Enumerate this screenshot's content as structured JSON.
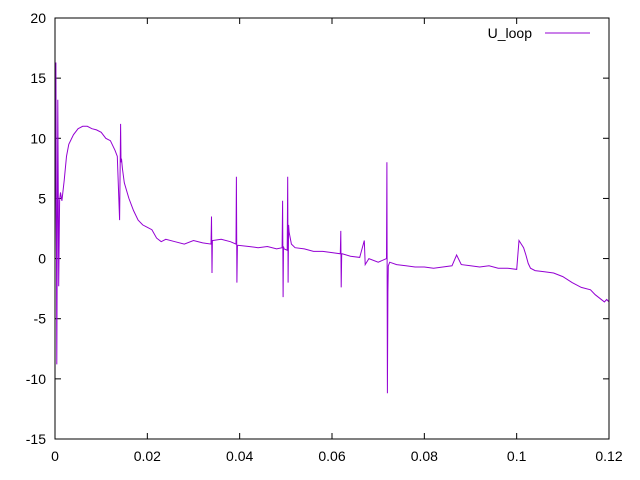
{
  "chart_data": {
    "type": "line",
    "title": "",
    "xlabel": "",
    "ylabel": "",
    "xlim": [
      0,
      0.12
    ],
    "ylim": [
      -15,
      20
    ],
    "x_ticks": [
      0,
      0.02,
      0.04,
      0.06,
      0.08,
      0.1,
      0.12
    ],
    "x_tick_labels": [
      "0",
      "0.02",
      "0.04",
      "0.06",
      "0.08",
      "0.1",
      "0.12"
    ],
    "y_ticks": [
      -15,
      -10,
      -5,
      0,
      5,
      10,
      15,
      20
    ],
    "y_tick_labels": [
      "-15",
      "-10",
      "-5",
      "0",
      "5",
      "10",
      "15",
      "20"
    ],
    "grid": false,
    "legend_position": "top-right",
    "series": [
      {
        "name": "U_loop",
        "color": "#9400d3",
        "x": [
          0,
          0.0002,
          0.0004,
          0.0006,
          0.0008,
          0.001,
          0.0012,
          0.0015,
          0.002,
          0.0025,
          0.003,
          0.004,
          0.005,
          0.006,
          0.007,
          0.008,
          0.009,
          0.01,
          0.011,
          0.012,
          0.013,
          0.0135,
          0.014,
          0.0142,
          0.0143,
          0.0144,
          0.0146,
          0.015,
          0.016,
          0.017,
          0.018,
          0.019,
          0.02,
          0.021,
          0.022,
          0.023,
          0.024,
          0.026,
          0.028,
          0.03,
          0.032,
          0.0338,
          0.0339,
          0.034,
          0.0341,
          0.0342,
          0.036,
          0.038,
          0.0392,
          0.0393,
          0.0394,
          0.0395,
          0.0396,
          0.042,
          0.044,
          0.046,
          0.048,
          0.0492,
          0.0493,
          0.0494,
          0.0495,
          0.0496,
          0.0503,
          0.0504,
          0.0505,
          0.0506,
          0.0507,
          0.0512,
          0.052,
          0.054,
          0.056,
          0.058,
          0.06,
          0.0618,
          0.0619,
          0.062,
          0.0621,
          0.0622,
          0.064,
          0.066,
          0.067,
          0.0672,
          0.068,
          0.07,
          0.0718,
          0.0719,
          0.072,
          0.0721,
          0.0722,
          0.0725,
          0.074,
          0.076,
          0.078,
          0.08,
          0.082,
          0.084,
          0.086,
          0.087,
          0.088,
          0.09,
          0.092,
          0.094,
          0.096,
          0.098,
          0.1,
          0.1005,
          0.101,
          0.1015,
          0.102,
          0.1025,
          0.103,
          0.104,
          0.106,
          0.108,
          0.11,
          0.112,
          0.114,
          0.116,
          0.117,
          0.118,
          0.119,
          0.1195,
          0.12
        ],
        "values": [
          0,
          16.3,
          -8.8,
          13.2,
          -2.3,
          4.8,
          5.5,
          4.8,
          6.5,
          8.5,
          9.5,
          10.3,
          10.8,
          11.0,
          11.0,
          10.8,
          10.7,
          10.5,
          10.0,
          9.8,
          9.0,
          8.5,
          3.2,
          11.2,
          8.0,
          8.3,
          7.5,
          6.3,
          5.0,
          4.0,
          3.2,
          2.8,
          2.6,
          2.4,
          1.7,
          1.4,
          1.6,
          1.4,
          1.2,
          1.5,
          1.3,
          1.2,
          3.5,
          -1.2,
          1.5,
          1.5,
          1.6,
          1.4,
          1.2,
          6.8,
          -2.0,
          1.0,
          1.1,
          1.0,
          0.9,
          1.0,
          0.8,
          0.9,
          4.8,
          -3.2,
          1.0,
          0.8,
          0.7,
          6.8,
          -2.0,
          2.8,
          2.2,
          1.2,
          0.9,
          0.8,
          0.6,
          0.6,
          0.5,
          0.4,
          2.3,
          -2.4,
          0.4,
          0.4,
          0.2,
          0.1,
          1.5,
          -0.5,
          0.0,
          -0.3,
          0.0,
          8.0,
          -11.2,
          -2.8,
          -0.6,
          -0.3,
          -0.5,
          -0.6,
          -0.7,
          -0.7,
          -0.8,
          -0.7,
          -0.6,
          0.3,
          -0.5,
          -0.6,
          -0.7,
          -0.6,
          -0.8,
          -0.8,
          -0.9,
          1.5,
          1.2,
          0.9,
          0.3,
          -0.4,
          -0.8,
          -1.0,
          -1.1,
          -1.2,
          -1.5,
          -2.0,
          -2.4,
          -2.6,
          -3.0,
          -3.3,
          -3.6,
          -3.4,
          -3.6
        ]
      }
    ]
  }
}
